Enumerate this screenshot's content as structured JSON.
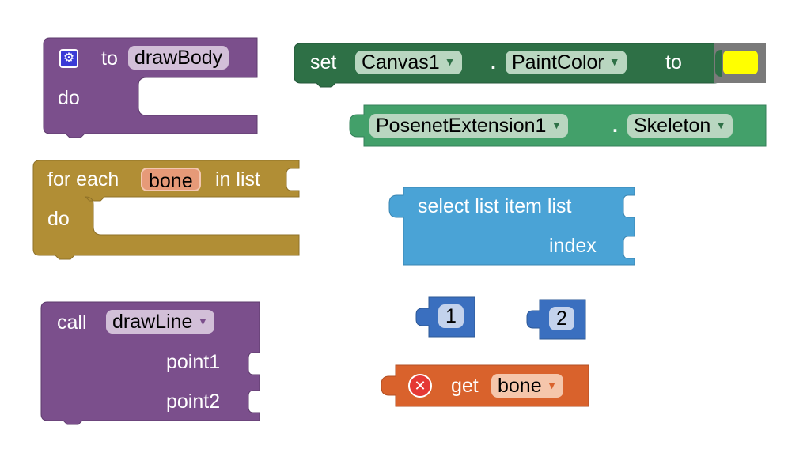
{
  "proc_def": {
    "to": "to",
    "name": "drawBody",
    "do": "do",
    "gear_glyph": "⚙"
  },
  "for_each": {
    "label": "for each",
    "var": "bone",
    "in_list": "in list",
    "do": "do"
  },
  "call_block": {
    "call": "call",
    "name": "drawLine",
    "arg1": "point1",
    "arg2": "point2",
    "arrow": "▼"
  },
  "set_block": {
    "set": "set",
    "component": "Canvas1",
    "dot": ".",
    "property": "PaintColor",
    "to": "to",
    "arrow": "▼",
    "swatch_color": "#ffff00"
  },
  "posenet_block": {
    "component": "PosenetExtension1",
    "dot": ".",
    "property": "Skeleton",
    "arrow": "▼"
  },
  "select_block": {
    "title": "select list item  list",
    "index": "index"
  },
  "number_blocks": [
    "1",
    "2"
  ],
  "get_block": {
    "get": "get",
    "var": "bone",
    "arrow": "▼",
    "error_glyph": "✕"
  },
  "colors": {
    "procedure": "#7b4f8c",
    "procedure_field": "#d2bfd8",
    "control": "#b18e35",
    "control_field": "#e69a78",
    "set_green": "#2e7046",
    "green_field": "#b9d6c0",
    "posenet_green": "#43a06a",
    "list_blue": "#4aa3d6",
    "math_blue": "#3a6fbf",
    "math_field": "#c3d2ec",
    "variable_orange": "#d9622c",
    "variable_field": "#f5c6ab"
  }
}
